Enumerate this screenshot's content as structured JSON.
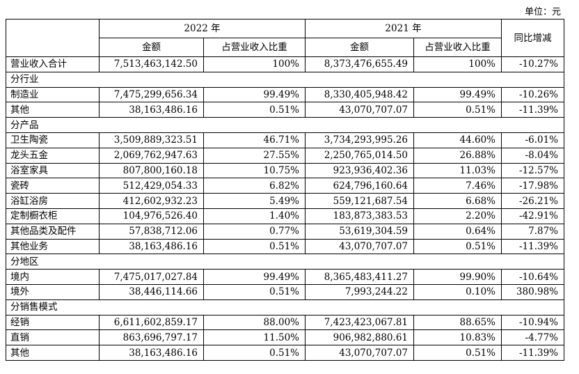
{
  "unit_label": "单位：元",
  "header": {
    "year_2022": "2022 年",
    "year_2021": "2021 年",
    "yoy": "同比增减",
    "amount": "金额",
    "ratio": "占营业收入比重"
  },
  "total": {
    "label": "营业收入合计",
    "a22": "7,513,463,142.50",
    "r22": "100%",
    "a21": "8,373,476,655.49",
    "r21": "100%",
    "yoy": "-10.27%"
  },
  "sections": [
    {
      "title": "分行业",
      "rows": [
        {
          "label": "制造业",
          "a22": "7,475,299,656.34",
          "r22": "99.49%",
          "a21": "8,330,405,948.42",
          "r21": "99.49%",
          "yoy": "-10.26%"
        },
        {
          "label": "其他",
          "a22": "38,163,486.16",
          "r22": "0.51%",
          "a21": "43,070,707.07",
          "r21": "0.51%",
          "yoy": "-11.39%"
        }
      ]
    },
    {
      "title": "分产品",
      "rows": [
        {
          "label": "卫生陶瓷",
          "a22": "3,509,889,323.51",
          "r22": "46.71%",
          "a21": "3,734,293,995.26",
          "r21": "44.60%",
          "yoy": "-6.01%"
        },
        {
          "label": "龙头五金",
          "a22": "2,069,762,947.63",
          "r22": "27.55%",
          "a21": "2,250,765,014.50",
          "r21": "26.88%",
          "yoy": "-8.04%"
        },
        {
          "label": "浴室家具",
          "a22": "807,800,160.18",
          "r22": "10.75%",
          "a21": "923,936,402.36",
          "r21": "11.03%",
          "yoy": "-12.57%"
        },
        {
          "label": "瓷砖",
          "a22": "512,429,054.33",
          "r22": "6.82%",
          "a21": "624,796,160.64",
          "r21": "7.46%",
          "yoy": "-17.98%"
        },
        {
          "label": "浴缸浴房",
          "a22": "412,602,932.23",
          "r22": "5.49%",
          "a21": "559,121,687.54",
          "r21": "6.68%",
          "yoy": "-26.21%"
        },
        {
          "label": "定制橱衣柜",
          "a22": "104,976,526.40",
          "r22": "1.40%",
          "a21": "183,873,383.53",
          "r21": "2.20%",
          "yoy": "-42.91%"
        },
        {
          "label": "其他品类及配件",
          "a22": "57,838,712.06",
          "r22": "0.77%",
          "a21": "53,619,304.59",
          "r21": "0.64%",
          "yoy": "7.87%"
        },
        {
          "label": "其他业务",
          "a22": "38,163,486.16",
          "r22": "0.51%",
          "a21": "43,070,707.07",
          "r21": "0.51%",
          "yoy": "-11.39%"
        }
      ]
    },
    {
      "title": "分地区",
      "rows": [
        {
          "label": "境内",
          "a22": "7,475,017,027.84",
          "r22": "99.49%",
          "a21": "8,365,483,411.27",
          "r21": "99.90%",
          "yoy": "-10.64%"
        },
        {
          "label": "境外",
          "a22": "38,446,114.66",
          "r22": "0.51%",
          "a21": "7,993,244.22",
          "r21": "0.10%",
          "yoy": "380.98%"
        }
      ]
    },
    {
      "title": "分销售模式",
      "rows": [
        {
          "label": "经销",
          "a22": "6,611,602,859.17",
          "r22": "88.00%",
          "a21": "7,423,423,067.81",
          "r21": "88.65%",
          "yoy": "-10.94%"
        },
        {
          "label": "直销",
          "a22": "863,696,797.17",
          "r22": "11.50%",
          "a21": "906,982,880.61",
          "r21": "10.83%",
          "yoy": "-4.77%"
        },
        {
          "label": "其他",
          "a22": "38,163,486.16",
          "r22": "0.51%",
          "a21": "43,070,707.07",
          "r21": "0.51%",
          "yoy": "-11.39%"
        }
      ]
    }
  ]
}
